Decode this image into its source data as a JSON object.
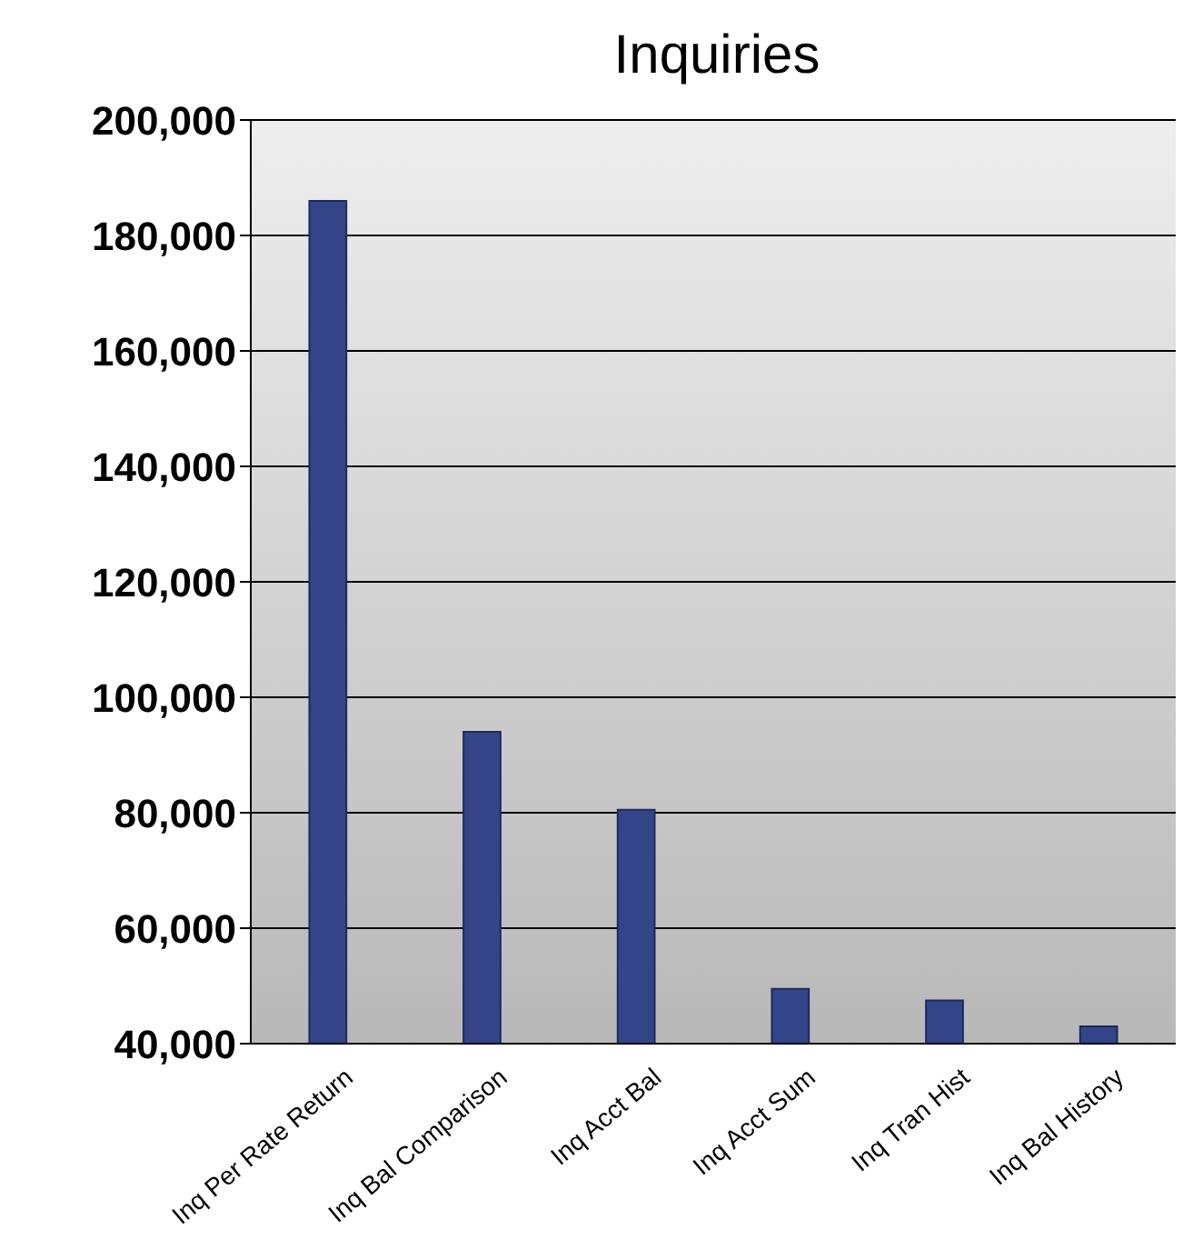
{
  "chart_data": {
    "type": "bar",
    "title": "Inquiries",
    "categories": [
      "Inq Per Rate Return",
      "Inq Bal Comparison",
      "Inq Acct Bal",
      "Inq Acct Sum",
      "Inq Tran Hist",
      "Inq Bal History"
    ],
    "series": [
      {
        "color": "#334488",
        "values": [
          186000,
          94000,
          80500,
          49500,
          47500,
          43000
        ]
      }
    ],
    "ylim": [
      40000,
      200000
    ],
    "yticks": [
      {
        "value": 40000,
        "label": "40,000"
      },
      {
        "value": 60000,
        "label": "60,000"
      },
      {
        "value": 80000,
        "label": "80,000"
      },
      {
        "value": 100000,
        "label": "100,000"
      },
      {
        "value": 120000,
        "label": "120,000"
      },
      {
        "value": 140000,
        "label": "140,000"
      },
      {
        "value": 160000,
        "label": "160,000"
      },
      {
        "value": 180000,
        "label": "180,000"
      },
      {
        "value": 200000,
        "label": "200,000"
      }
    ],
    "grid": "y"
  }
}
